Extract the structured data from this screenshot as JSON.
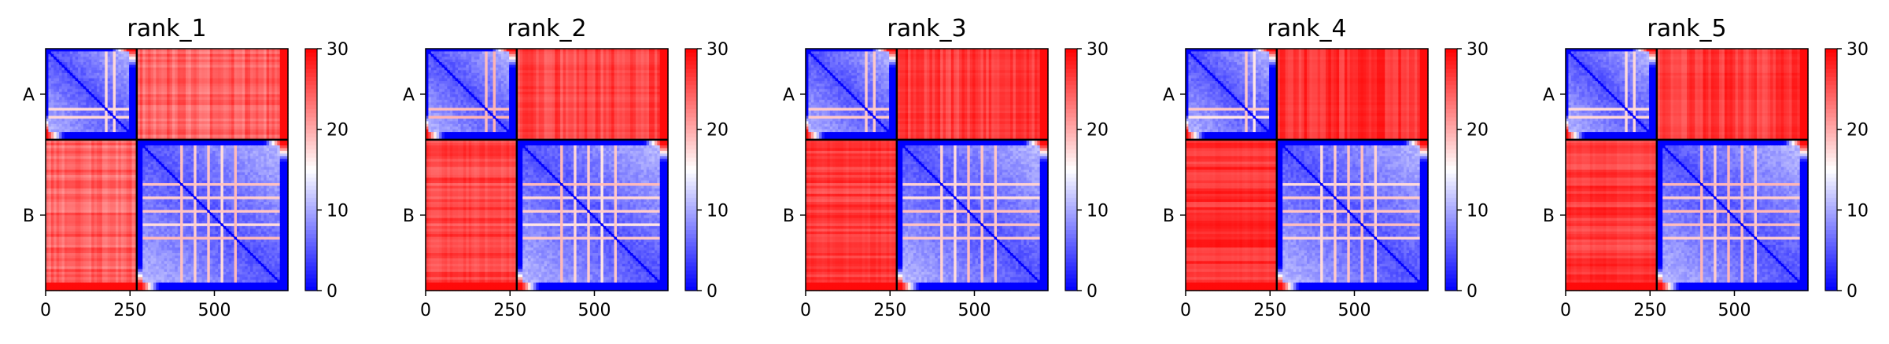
{
  "chart_data": [
    {
      "type": "heatmap",
      "title": "rank_1",
      "chains": [
        "A",
        "B"
      ],
      "chain_boundary": 270,
      "x_ticks": [
        "0",
        "250",
        "500"
      ],
      "x_tick_values": [
        0,
        250,
        500
      ],
      "x_range": [
        0,
        718
      ],
      "colorbar_ticks": [
        "0",
        "10",
        "20",
        "30"
      ],
      "colorbar_range": [
        0,
        30
      ],
      "colormap": [
        "#0000ff",
        "#ffffff",
        "#ff0000"
      ],
      "offdiag_level": 0.82
    },
    {
      "type": "heatmap",
      "title": "rank_2",
      "chains": [
        "A",
        "B"
      ],
      "chain_boundary": 270,
      "x_ticks": [
        "0",
        "250",
        "500"
      ],
      "x_tick_values": [
        0,
        250,
        500
      ],
      "x_range": [
        0,
        718
      ],
      "colorbar_ticks": [
        "0",
        "10",
        "20",
        "30"
      ],
      "colorbar_range": [
        0,
        30
      ],
      "colormap": [
        "#0000ff",
        "#ffffff",
        "#ff0000"
      ],
      "offdiag_level": 0.9
    },
    {
      "type": "heatmap",
      "title": "rank_3",
      "chains": [
        "A",
        "B"
      ],
      "chain_boundary": 270,
      "x_ticks": [
        "0",
        "250",
        "500"
      ],
      "x_tick_values": [
        0,
        250,
        500
      ],
      "x_range": [
        0,
        718
      ],
      "colorbar_ticks": [
        "0",
        "10",
        "20",
        "30"
      ],
      "colorbar_range": [
        0,
        30
      ],
      "colormap": [
        "#0000ff",
        "#ffffff",
        "#ff0000"
      ],
      "offdiag_level": 0.92
    },
    {
      "type": "heatmap",
      "title": "rank_4",
      "chains": [
        "A",
        "B"
      ],
      "chain_boundary": 270,
      "x_ticks": [
        "0",
        "250",
        "500"
      ],
      "x_tick_values": [
        0,
        250,
        500
      ],
      "x_range": [
        0,
        718
      ],
      "colorbar_ticks": [
        "0",
        "10",
        "20",
        "30"
      ],
      "colorbar_range": [
        0,
        30
      ],
      "colormap": [
        "#0000ff",
        "#ffffff",
        "#ff0000"
      ],
      "offdiag_level": 0.95
    },
    {
      "type": "heatmap",
      "title": "rank_5",
      "chains": [
        "A",
        "B"
      ],
      "chain_boundary": 270,
      "x_ticks": [
        "0",
        "250",
        "500"
      ],
      "x_tick_values": [
        0,
        250,
        500
      ],
      "x_range": [
        0,
        718
      ],
      "colorbar_ticks": [
        "0",
        "10",
        "20",
        "30"
      ],
      "colorbar_range": [
        0,
        30
      ],
      "colormap": [
        "#0000ff",
        "#ffffff",
        "#ff0000"
      ],
      "offdiag_level": 0.93
    }
  ]
}
